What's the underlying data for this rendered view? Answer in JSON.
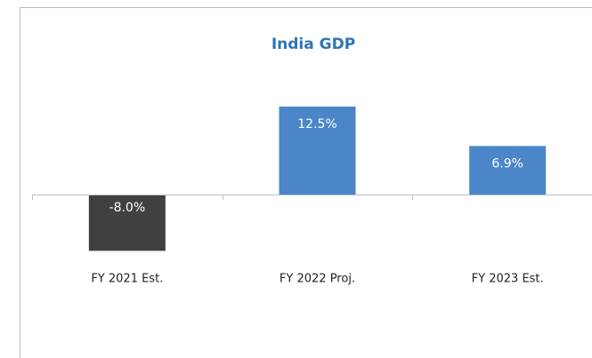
{
  "chart_data": {
    "type": "bar",
    "title": "India GDP",
    "categories": [
      "FY 2021 Est.",
      "FY 2022 Proj.",
      "FY 2023 Est."
    ],
    "values": [
      -8.0,
      12.5,
      6.9
    ],
    "value_labels": [
      "-8.0%",
      "12.5%",
      "6.9%"
    ],
    "colors": [
      "#404040",
      "#4a86c8",
      "#4a86c8"
    ]
  }
}
